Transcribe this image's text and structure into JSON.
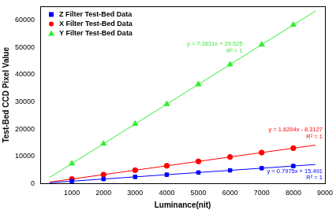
{
  "chart_data": {
    "type": "scatter",
    "x_label": "Luminance(nit)",
    "y_label": "Test-Bed CCD Pixel Value",
    "x": [
      1000,
      2000,
      3000,
      4000,
      5000,
      6000,
      7000,
      8000
    ],
    "xlim": [
      0,
      9000
    ],
    "xticks": [
      1000,
      2000,
      3000,
      4000,
      5000,
      6000,
      7000,
      8000,
      9000
    ],
    "ylim": [
      0,
      65000
    ],
    "yticks": [
      0,
      10000,
      20000,
      30000,
      40000,
      50000,
      60000
    ],
    "grid": false,
    "legend": "upper left",
    "series": [
      {
        "name": "Z Filter Test-Bed Data",
        "color": "#0000ff",
        "marker": "square",
        "values": [
          813,
          1610,
          2408,
          3205,
          4003,
          4800,
          5598,
          6396
        ],
        "trendline": {
          "x": [
            300,
            8700
          ],
          "values": [
            255,
            6954
          ],
          "equation": "y = 0.7975x + 15.491",
          "r2": "R² = 1"
        }
      },
      {
        "name": "X Filter Test-Bed Data",
        "color": "#ff0000",
        "marker": "circle",
        "values": [
          1612,
          3233,
          4853,
          6473,
          8094,
          9714,
          11335,
          12955
        ],
        "trendline": {
          "x": [
            300,
            8700
          ],
          "values": [
            478,
            14089
          ],
          "equation": "y = 1.6204x - 8.3127",
          "r2": "R² = 1"
        }
      },
      {
        "name": "Y Filter Test-Bed Data",
        "color": "#33ee33",
        "marker": "triangle",
        "values": [
          7313,
          14596,
          21879,
          29162,
          36445,
          43728,
          51011,
          58294
        ],
        "trendline": {
          "x": [
            300,
            8700
          ],
          "values": [
            2215,
            63392
          ],
          "equation": "y = 7.2831x + 29.525",
          "r2": "R² = 1"
        }
      }
    ]
  }
}
